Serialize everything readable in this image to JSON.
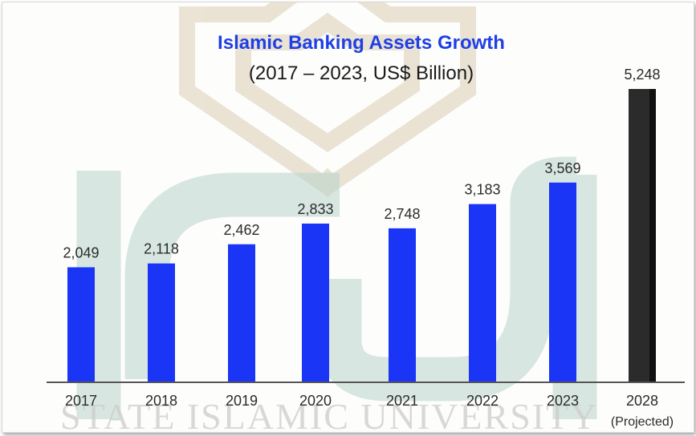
{
  "colors": {
    "bar": "#1a35f5",
    "projected_bar": "#2b2b2b",
    "title": "#1f3fe6",
    "watermark_green": "#b9d4cb",
    "watermark_tan": "#dccfb4"
  },
  "watermark": {
    "text": "STATE ISLAMIC UNIVERSITY"
  },
  "chart_data": {
    "type": "bar",
    "title": "Islamic Banking Assets Growth",
    "subtitle": "(2017 – 2023, US$ Billion)",
    "categories": [
      "2017",
      "2018",
      "2019",
      "2020",
      "2021",
      "2022",
      "2023",
      "2028"
    ],
    "category_notes": [
      "",
      "",
      "",
      "",
      "",
      "",
      "",
      "(Projected)"
    ],
    "values": [
      2049,
      2118,
      2462,
      2833,
      2748,
      3183,
      3569,
      5248
    ],
    "value_labels": [
      "2,049",
      "2,118",
      "2,462",
      "2,833",
      "2,748",
      "3,183",
      "3,569",
      "5,248"
    ],
    "projected": [
      false,
      false,
      false,
      false,
      false,
      false,
      false,
      true
    ],
    "ylim": [
      0,
      5400
    ],
    "xlabel": "",
    "ylabel": "",
    "grid": false,
    "legend": "none"
  }
}
